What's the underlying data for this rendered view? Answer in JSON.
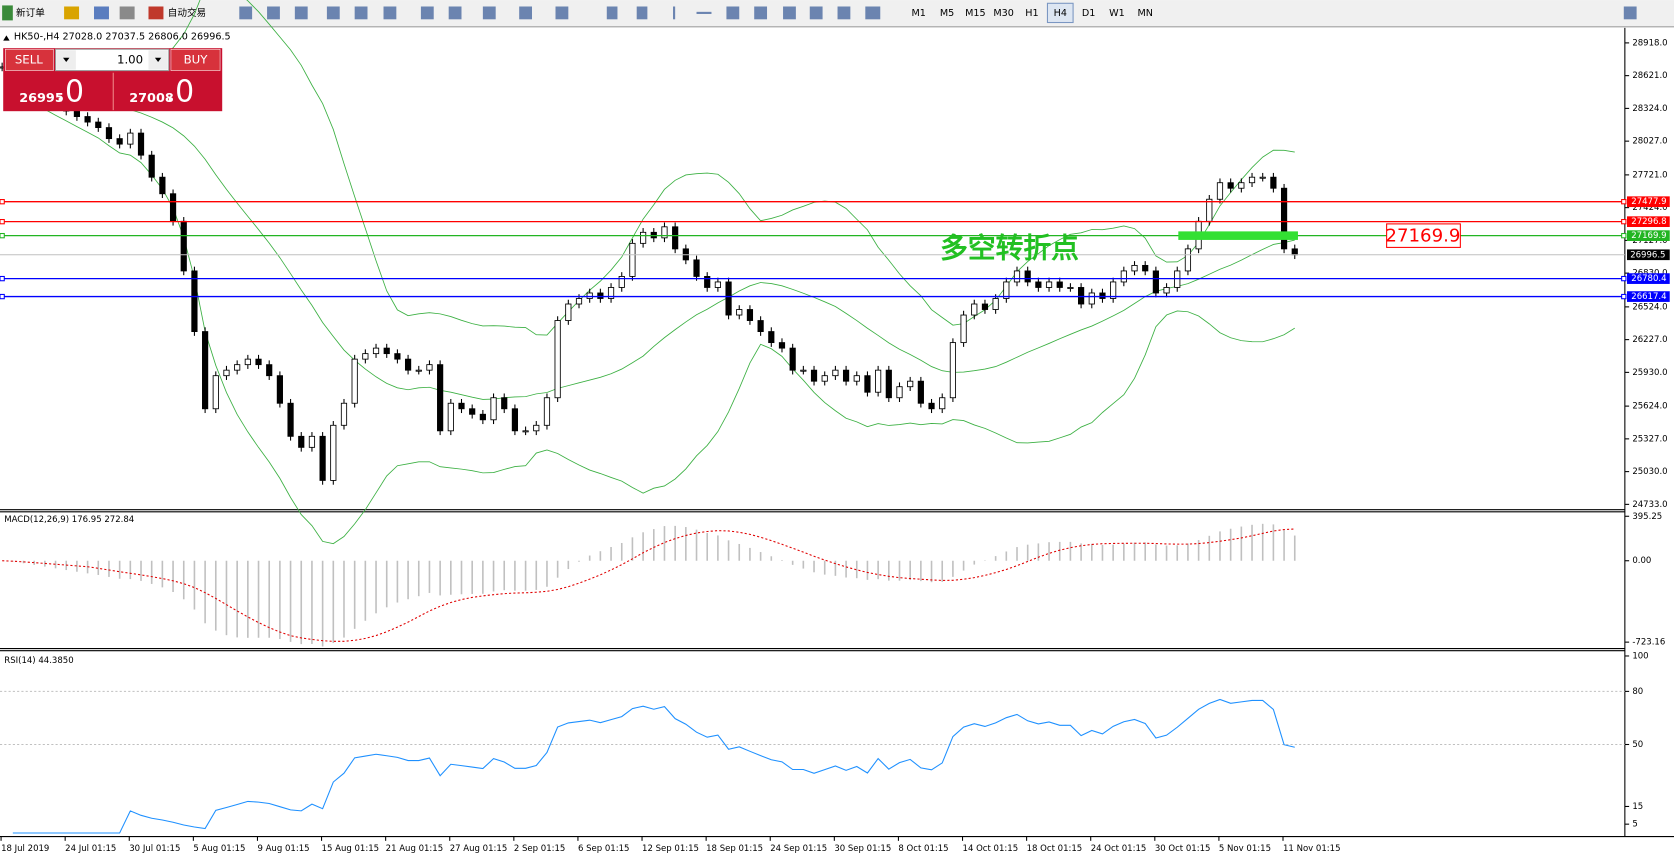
{
  "toolbar": {
    "new_order": "新订单",
    "auto_trading": "自动交易",
    "timeframes": [
      "M1",
      "M5",
      "M15",
      "M30",
      "H1",
      "H4",
      "D1",
      "W1",
      "MN"
    ],
    "active": "H4"
  },
  "trade_panel": {
    "sell": "SELL",
    "buy": "BUY",
    "lot": "1.00",
    "bid": "26995",
    "bid_decimals": ".0",
    "ask": "27008",
    "ask_decimals": ".0"
  },
  "chart": {
    "header": "HK50-,H4  27028.0 27037.5 26806.0 26996.5",
    "ylim": [
      24685,
      29035
    ],
    "yticks": [
      {
        "value": 28918,
        "label": "28918.0"
      },
      {
        "value": 28621,
        "label": "28621.0"
      },
      {
        "value": 28324,
        "label": "28324.0"
      },
      {
        "value": 28027,
        "label": "28027.0"
      },
      {
        "value": 27721,
        "label": "27721.0"
      },
      {
        "value": 27424,
        "label": "27424.0"
      },
      {
        "value": 27127,
        "label": "27127.0"
      },
      {
        "value": 26830,
        "label": "26830.0"
      },
      {
        "value": 26524,
        "label": "26524.0"
      },
      {
        "value": 26227,
        "label": "26227.0"
      },
      {
        "value": 25930,
        "label": "25930.0"
      },
      {
        "value": 25624,
        "label": "25624.0"
      },
      {
        "value": 25327,
        "label": "25327.0"
      },
      {
        "value": 25030,
        "label": "25030.0"
      },
      {
        "value": 24733,
        "label": "24733.0"
      }
    ],
    "closes": [
      28700,
      28600,
      28500,
      28450,
      28400,
      28350,
      28300,
      28250,
      28200,
      28150,
      28050,
      28000,
      28100,
      27900,
      27700,
      27550,
      27300,
      26850,
      26300,
      25600,
      25900,
      25950,
      26000,
      26050,
      26000,
      25900,
      25650,
      25350,
      25250,
      25350,
      24950,
      25450,
      25650,
      26050,
      26100,
      26150,
      26100,
      26050,
      25950,
      25950,
      26000,
      25400,
      25650,
      25600,
      25550,
      25500,
      25700,
      25600,
      25400,
      25400,
      25450,
      25700,
      26400,
      26550,
      26600,
      26650,
      26600,
      26700,
      26800,
      27100,
      27200,
      27150,
      27250,
      27050,
      26950,
      26800,
      26700,
      26750,
      26450,
      26500,
      26400,
      26300,
      26200,
      26150,
      25950,
      25950,
      25850,
      25900,
      25950,
      25850,
      25900,
      25750,
      25950,
      25700,
      25800,
      25850,
      25650,
      25600,
      25700,
      26200,
      26450,
      26550,
      26500,
      26600,
      26750,
      26850,
      26750,
      26700,
      26750,
      26700,
      26700,
      26550,
      26650,
      26600,
      26750,
      26850,
      26900,
      26850,
      26650,
      26700,
      26850,
      27050,
      27300,
      27500,
      27650,
      27600,
      27650,
      27700,
      27700,
      27600,
      27050,
      26996.5
    ],
    "current": 26996.5,
    "levels": [
      {
        "value": 27477.9,
        "color": "#ff0000"
      },
      {
        "value": 27296.8,
        "color": "#ff0000"
      },
      {
        "value": 27169.9,
        "color": "#22b522"
      },
      {
        "value": 26780.4,
        "color": "#0000ff"
      },
      {
        "value": 26617.4,
        "color": "#0000ff"
      }
    ],
    "annotation": {
      "text": "多空转折点",
      "price": 27169.9,
      "color": "#22c022"
    },
    "dates": [
      "18 Jul 2019",
      "24 Jul 01:15",
      "30 Jul 01:15",
      "5 Aug 01:15",
      "9 Aug 01:15",
      "15 Aug 01:15",
      "21 Aug 01:15",
      "27 Aug 01:15",
      "2 Sep 01:15",
      "6 Sep 01:15",
      "12 Sep 01:15",
      "18 Sep 01:15",
      "24 Sep 01:15",
      "30 Sep 01:15",
      "8 Oct 01:15",
      "14 Oct 01:15",
      "18 Oct 01:15",
      "24 Oct 01:15",
      "30 Oct 01:15",
      "5 Nov 01:15",
      "11 Nov 01:15"
    ]
  },
  "macd": {
    "label": "MACD(12,26,9) 176.95 272.84",
    "fast": 12,
    "slow": 26,
    "signal": 9,
    "ylim": [
      -780,
      435
    ],
    "yticks": [
      395.25,
      {
        "value": 0,
        "label": "0.00"
      },
      -723.16
    ]
  },
  "rsi": {
    "label": "RSI(14) 44.3850",
    "period": 14,
    "ylim": [
      -2,
      103
    ],
    "yticks": [
      100,
      80,
      50,
      15,
      5
    ],
    "levels": [
      80,
      50
    ]
  }
}
